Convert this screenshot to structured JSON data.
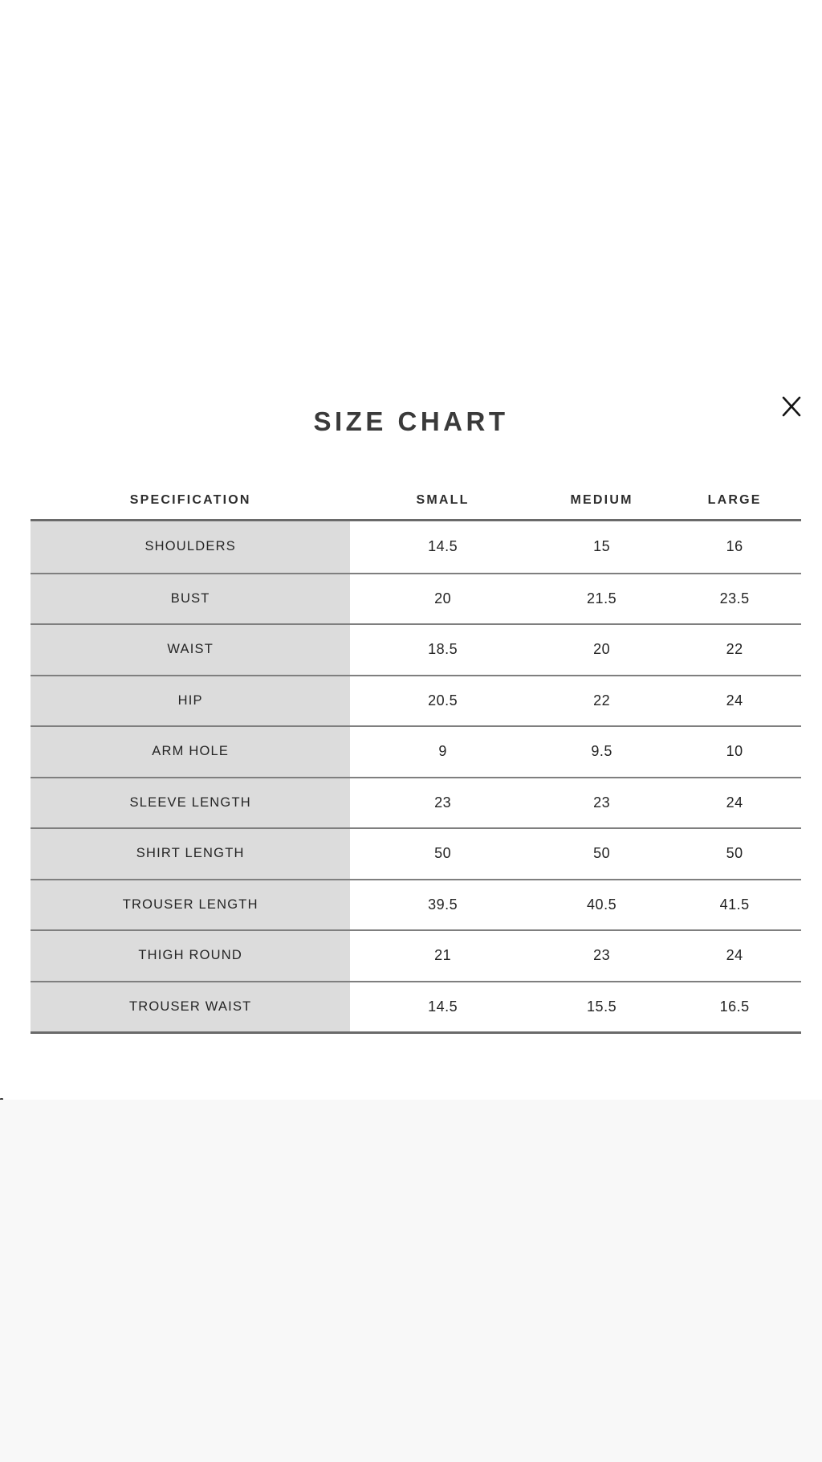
{
  "modal": {
    "title": "SIZE CHART",
    "close_icon": "x-close"
  },
  "size_table": {
    "columns": [
      "SPECIFICATION",
      "SMALL",
      "MEDIUM",
      "LARGE"
    ],
    "rows": [
      {
        "label": "SHOULDERS",
        "values": [
          "14.5",
          "15",
          "16"
        ]
      },
      {
        "label": "BUST",
        "values": [
          "20",
          "21.5",
          "23.5"
        ]
      },
      {
        "label": "WAIST",
        "values": [
          "18.5",
          "20",
          "22"
        ]
      },
      {
        "label": "HIP",
        "values": [
          "20.5",
          "22",
          "24"
        ]
      },
      {
        "label": "ARM HOLE",
        "values": [
          "9",
          "9.5",
          "10"
        ]
      },
      {
        "label": "SLEEVE LENGTH",
        "values": [
          "23",
          "23",
          "24"
        ]
      },
      {
        "label": "SHIRT LENGTH",
        "values": [
          "50",
          "50",
          "50"
        ]
      },
      {
        "label": "TROUSER LENGTH",
        "values": [
          "39.5",
          "40.5",
          "41.5"
        ]
      },
      {
        "label": "THIGH ROUND",
        "values": [
          "21",
          "23",
          "24"
        ]
      },
      {
        "label": "TROUSER WAIST",
        "values": [
          "14.5",
          "15.5",
          "16.5"
        ]
      }
    ],
    "colors": {
      "label_column_bg": "#dcdcdc",
      "separator_line": "#7f7f7f",
      "table_border": "#6a6a6a",
      "text": "#242424",
      "title": "#3a3a3a",
      "page_bg": "#ffffff",
      "bottom_strip_bg": "#f8f8f8"
    }
  }
}
